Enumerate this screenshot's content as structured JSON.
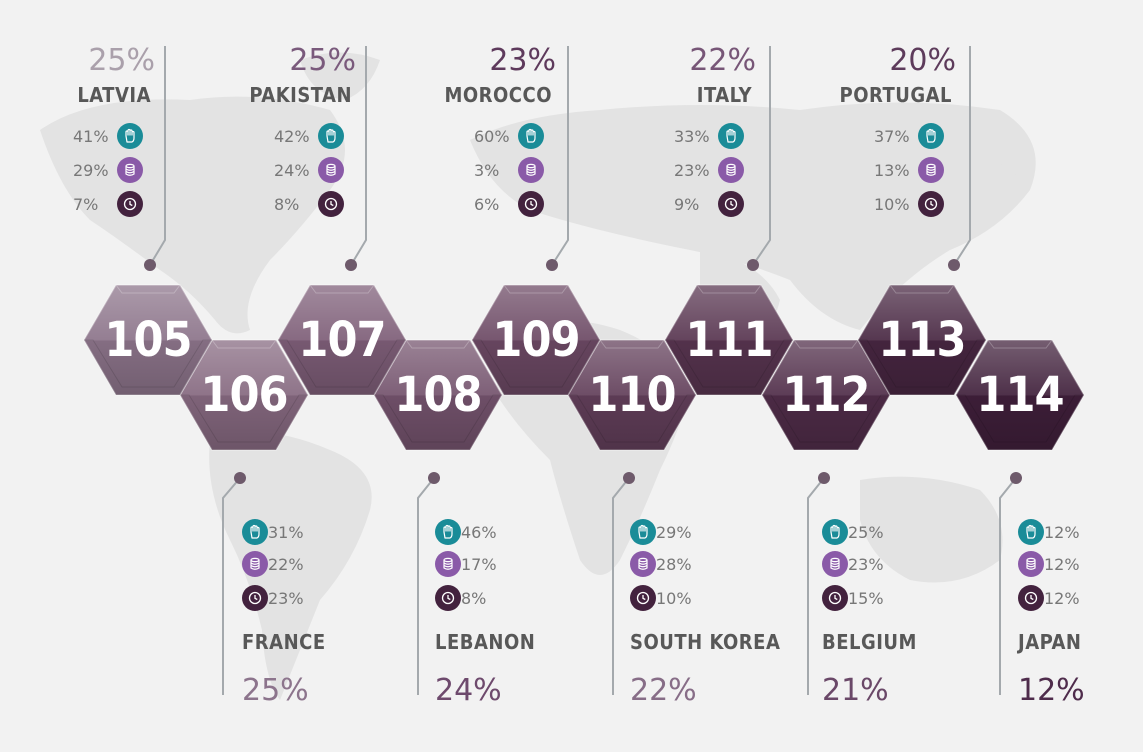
{
  "colors": {
    "teal": "#1a8c98",
    "purple": "#8a5aa8",
    "dark": "#43223e",
    "hex": [
      "#8b7389",
      "#85687f",
      "#7d5d77",
      "#73526c",
      "#6b4863",
      "#613e59",
      "#57344f",
      "#4f2c48",
      "#472641",
      "#3f1f3a"
    ],
    "pct": [
      "#aaa0ab",
      "#8c748c",
      "#7a5a7c",
      "#6e4a6d",
      "#5e3a5c",
      "#876d87",
      "#775677",
      "#6a4868",
      "#5d3b5b",
      "#4f2c4c"
    ]
  },
  "icons": [
    "hand-icon",
    "coins-icon",
    "clock-icon"
  ],
  "items": [
    {
      "number": "105",
      "country": "LATVIA",
      "percent": "25%",
      "stats": [
        "41%",
        "29%",
        "7%"
      ]
    },
    {
      "number": "106",
      "country": "FRANCE",
      "percent": "25%",
      "stats": [
        "31%",
        "22%",
        "23%"
      ]
    },
    {
      "number": "107",
      "country": "PAKISTAN",
      "percent": "25%",
      "stats": [
        "42%",
        "24%",
        "8%"
      ]
    },
    {
      "number": "108",
      "country": "LEBANON",
      "percent": "24%",
      "stats": [
        "46%",
        "17%",
        "8%"
      ]
    },
    {
      "number": "109",
      "country": "MOROCCO",
      "percent": "23%",
      "stats": [
        "60%",
        "3%",
        "6%"
      ]
    },
    {
      "number": "110",
      "country": "SOUTH KOREA",
      "percent": "22%",
      "stats": [
        "29%",
        "28%",
        "10%"
      ]
    },
    {
      "number": "111",
      "country": "ITALY",
      "percent": "22%",
      "stats": [
        "33%",
        "23%",
        "9%"
      ]
    },
    {
      "number": "112",
      "country": "BELGIUM",
      "percent": "21%",
      "stats": [
        "25%",
        "23%",
        "15%"
      ]
    },
    {
      "number": "113",
      "country": "PORTUGAL",
      "percent": "20%",
      "stats": [
        "37%",
        "13%",
        "10%"
      ]
    },
    {
      "number": "114",
      "country": "JAPAN",
      "percent": "12%",
      "stats": [
        "12%",
        "12%",
        "12%"
      ]
    }
  ]
}
